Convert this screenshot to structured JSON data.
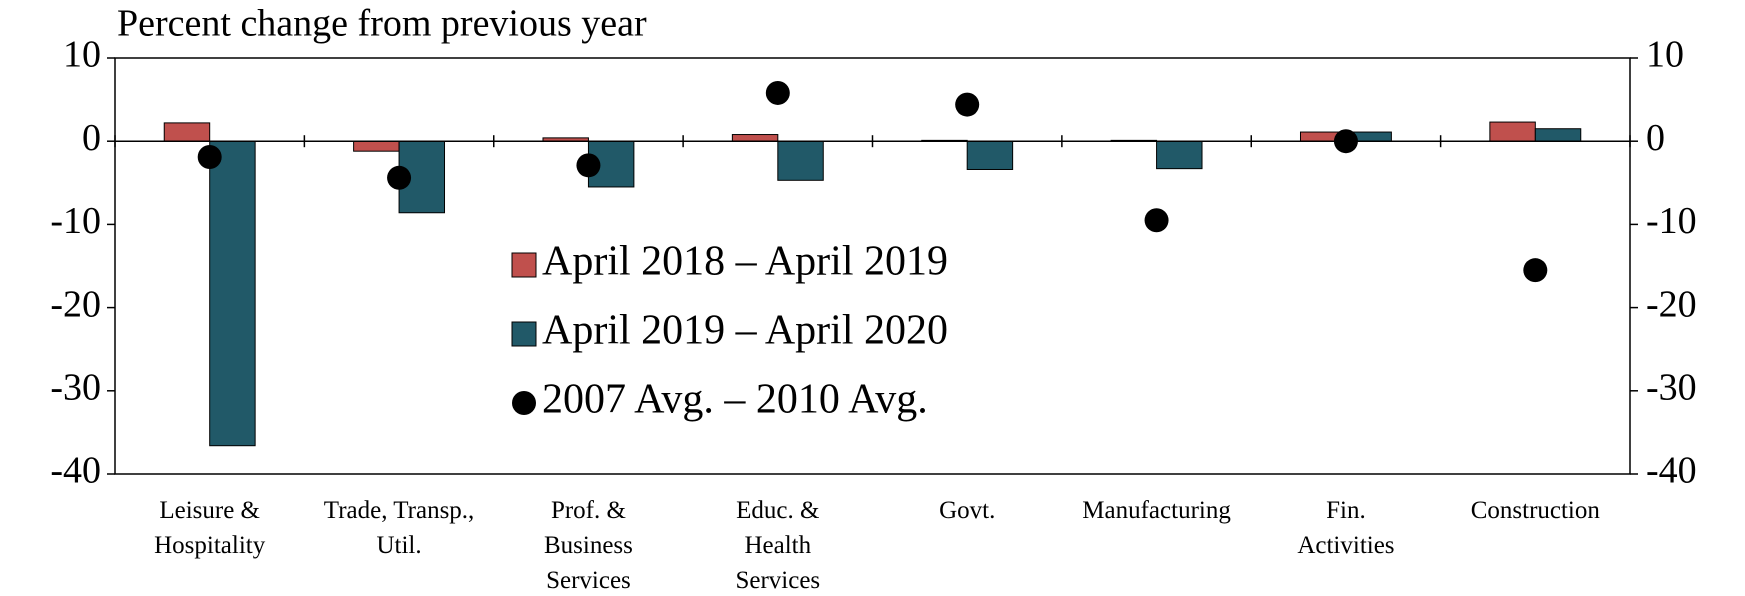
{
  "chart_data": {
    "type": "bar",
    "title": "Percent change from previous year",
    "categories": [
      "Leisure &\nHospitality",
      "Trade, Transp.,\nUtil.",
      "Prof. &\nBusiness\nServices",
      "Educ. &\nHealth\nServices",
      "Govt.",
      "Manufacturing",
      "Fin.\nActivities",
      "Construction"
    ],
    "series": [
      {
        "name": "April 2018 – April 2019",
        "type": "bar",
        "color": "#c0504d",
        "values": [
          2.2,
          -1.2,
          0.4,
          0.8,
          0.1,
          0.1,
          1.1,
          2.3
        ]
      },
      {
        "name": "April 2019 – April 2020",
        "type": "bar",
        "color": "#215968",
        "values": [
          -36.6,
          -8.6,
          -5.5,
          -4.7,
          -3.4,
          -3.3,
          1.1,
          1.5
        ]
      },
      {
        "name": "2007 Avg. – 2010 Avg.",
        "type": "scatter",
        "color": "#000000",
        "values": [
          -1.9,
          -4.4,
          -2.9,
          5.8,
          4.4,
          -9.5,
          0,
          -15.5
        ]
      }
    ],
    "ylim": [
      -40,
      10
    ],
    "yticks": [
      -40,
      -30,
      -20,
      -10,
      0,
      10
    ],
    "y2lim": [
      -40,
      10
    ],
    "y2ticks": [
      -40,
      -30,
      -20,
      -10,
      0,
      10
    ],
    "grid": false
  }
}
